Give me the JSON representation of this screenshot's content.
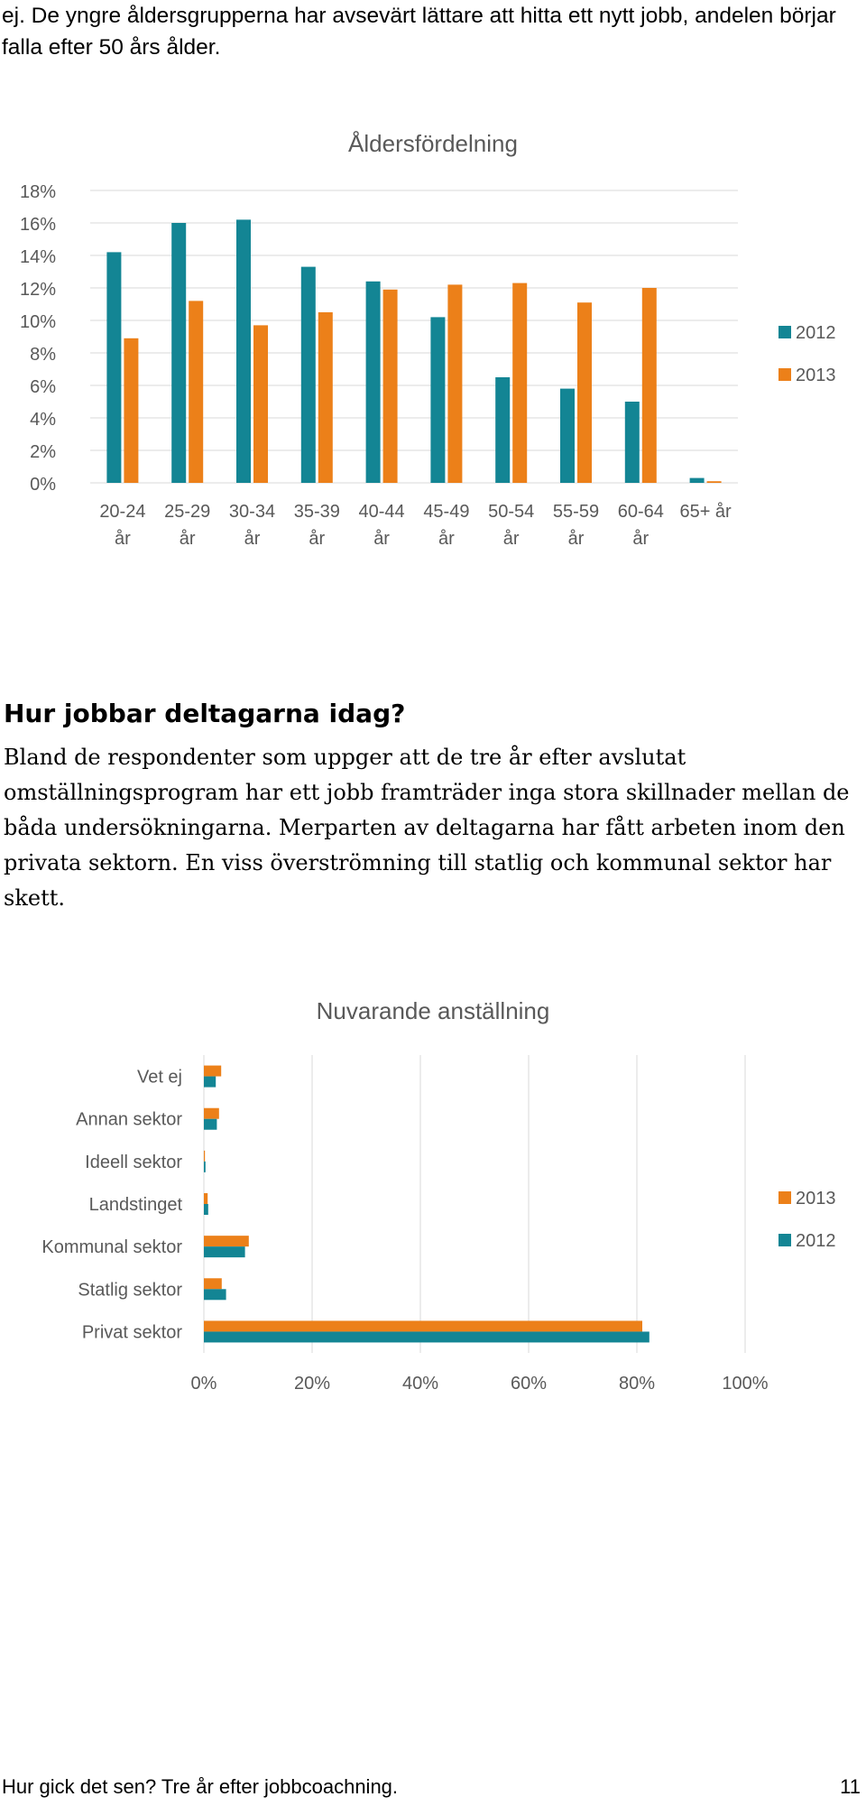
{
  "intro_text": "ej. De yngre åldersgrupperna har avsevärt lättare att hitta ett nytt jobb, andelen börjar falla efter 50 års ålder.",
  "section_heading": "Hur jobbar deltagarna idag?",
  "body_text": "Bland de respondenter som uppger att de tre år efter avslutat omställningsprogram har ett jobb framträder inga stora skillnader mellan de båda undersökningarna. Merparten av deltagarna har fått arbeten inom den privata sektorn. En viss överströmning till statlig och kommunal sektor har skett.",
  "footer": {
    "title": "Hur gick det sen? Tre år efter jobbcoachning.",
    "page_number": "11"
  },
  "colors": {
    "series_2012": "#138594",
    "series_2013": "#EC8019",
    "axis_text": "#595959",
    "gridline": "#D9D9D9"
  },
  "chart_data": [
    {
      "type": "bar",
      "title": "Åldersfördelning",
      "categories": [
        [
          "20-24",
          "år"
        ],
        [
          "25-29",
          "år"
        ],
        [
          "30-34",
          "år"
        ],
        [
          "35-39",
          "år"
        ],
        [
          "40-44",
          "år"
        ],
        [
          "45-49",
          "år"
        ],
        [
          "50-54",
          "år"
        ],
        [
          "55-59",
          "år"
        ],
        [
          "60-64",
          "år"
        ],
        [
          "65+ år"
        ]
      ],
      "series": [
        {
          "name": "2012",
          "values": [
            14.2,
            16.0,
            16.2,
            13.3,
            12.4,
            10.2,
            6.5,
            5.8,
            5.0,
            0.3
          ]
        },
        {
          "name": "2013",
          "values": [
            8.9,
            11.2,
            9.7,
            10.5,
            11.9,
            12.2,
            12.3,
            11.1,
            12.0,
            0.1
          ]
        }
      ],
      "ylim": [
        0,
        18
      ],
      "yticks": [
        "0%",
        "2%",
        "4%",
        "6%",
        "8%",
        "10%",
        "12%",
        "14%",
        "16%",
        "18%"
      ],
      "grid": true,
      "legend": "right"
    },
    {
      "type": "bar",
      "orientation": "horizontal",
      "title": "Nuvarande anställning",
      "categories": [
        "Vet ej",
        "Annan sektor",
        "Ideell sektor",
        "Landstinget",
        "Kommunal sektor",
        "Statlig sektor",
        "Privat sektor"
      ],
      "series": [
        {
          "name": "2013",
          "values": [
            3.2,
            2.8,
            0.2,
            0.7,
            8.3,
            3.3,
            81.0
          ]
        },
        {
          "name": "2012",
          "values": [
            2.2,
            2.4,
            0.3,
            0.8,
            7.6,
            4.1,
            82.3
          ]
        }
      ],
      "xlim": [
        0,
        100
      ],
      "xticks": [
        "0%",
        "20%",
        "40%",
        "60%",
        "80%",
        "100%"
      ],
      "grid": true,
      "legend": "right"
    }
  ]
}
